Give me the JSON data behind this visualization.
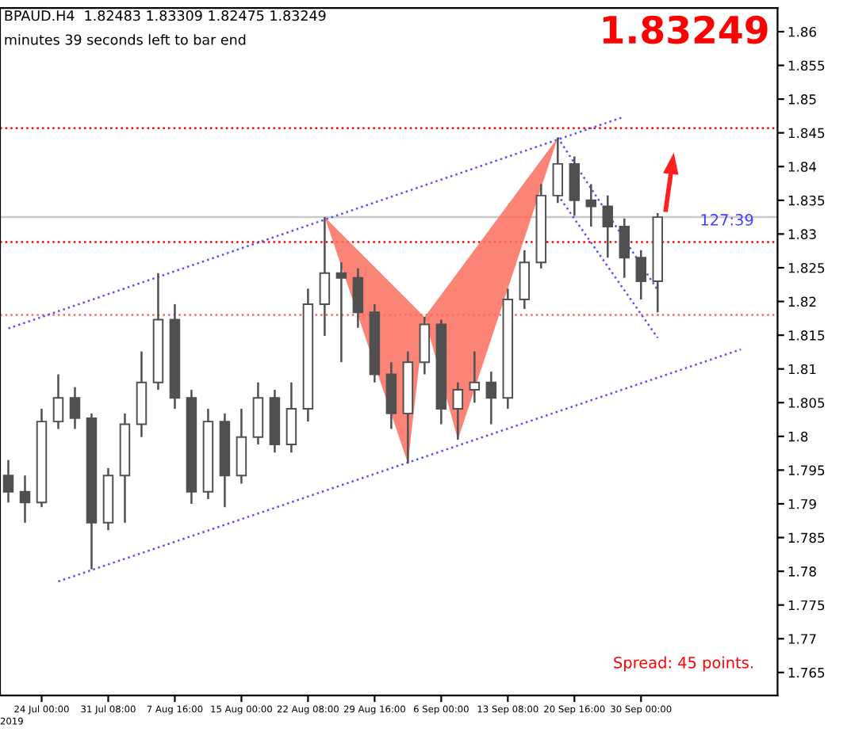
{
  "chart_data": {
    "type": "candlestick",
    "title": "BPAUD.H4  1.82483 1.83309 1.82475 1.83249",
    "subtitle": "minutes 39 seconds left to bar end",
    "annotations": [
      "1.83249",
      "Spread: 45 points.",
      "2019",
      "127:39"
    ],
    "categories": [
      null,
      null,
      "24 Jul 00:00",
      null,
      null,
      null,
      "31 Jul 08:00",
      null,
      null,
      null,
      "7 Aug 16:00",
      null,
      null,
      null,
      "15 Aug 00:00",
      null,
      null,
      null,
      "22 Aug 08:00",
      null,
      null,
      null,
      "29 Aug 16:00",
      null,
      null,
      null,
      "6 Sep 00:00",
      null,
      null,
      null,
      "13 Sep 08:00",
      null,
      null,
      null,
      "20 Sep 16:00",
      null,
      null,
      null,
      "30 Sep 00:00",
      null,
      null,
      null,
      null,
      null,
      null,
      null,
      null
    ],
    "ylim": [
      1.7616,
      1.8635
    ],
    "yticks": [
      1.765,
      1.77,
      1.775,
      1.78,
      1.785,
      1.79,
      1.795,
      1.8,
      1.805,
      1.81,
      1.815,
      1.82,
      1.825,
      1.83,
      1.835,
      1.84,
      1.845,
      1.85,
      1.855,
      1.86
    ],
    "line_style": "dotted",
    "grid": false,
    "ref_lines": [
      {
        "axis": "y",
        "value": 1.8457,
        "color": "#ff0000",
        "line_style": "dotted"
      },
      {
        "axis": "y",
        "value": 1.8288,
        "color": "#ff0000",
        "line_style": "dotted"
      },
      {
        "axis": "y",
        "value": 1.818,
        "color": "#ff6060",
        "line_style": "dotted"
      },
      {
        "axis": "y",
        "value": 1.8325,
        "color": "#c8c8c8",
        "line_style": "solid"
      }
    ],
    "series": [
      {
        "color": "#505050",
        "ohlc": [
          [
            1.7942,
            1.7965,
            1.7902,
            1.7918
          ],
          [
            1.7918,
            1.7942,
            1.7872,
            1.7902
          ],
          [
            1.7902,
            1.8041,
            1.7895,
            1.8022
          ],
          [
            1.8022,
            1.8092,
            1.8011,
            1.8057
          ],
          [
            1.8057,
            1.8073,
            1.8011,
            1.8027
          ],
          [
            1.8027,
            1.8034,
            1.7803,
            1.7872
          ],
          [
            1.7872,
            1.7953,
            1.7861,
            1.7942
          ],
          [
            1.7942,
            1.8034,
            1.7872,
            1.8018
          ],
          [
            1.8018,
            1.8126,
            1.7999,
            1.808
          ],
          [
            1.808,
            1.8242,
            1.8069,
            1.8173
          ],
          [
            1.8173,
            1.8196,
            1.8041,
            1.8057
          ],
          [
            1.8057,
            1.8069,
            1.79,
            1.7918
          ],
          [
            1.7918,
            1.8041,
            1.7907,
            1.8022
          ],
          [
            1.8022,
            1.8034,
            1.7895,
            1.7942
          ],
          [
            1.7942,
            1.8041,
            1.793,
            1.7999
          ],
          [
            1.7999,
            1.808,
            1.7988,
            1.8057
          ],
          [
            1.8057,
            1.8069,
            1.7976,
            1.7988
          ],
          [
            1.7988,
            1.808,
            1.7976,
            1.8041
          ],
          [
            1.8041,
            1.8219,
            1.8022,
            1.8196
          ],
          [
            1.8196,
            1.8325,
            1.8149,
            1.8242
          ],
          [
            1.8242,
            1.8258,
            1.811,
            1.8235
          ],
          [
            1.8235,
            1.8249,
            1.8161,
            1.8184
          ],
          [
            1.8184,
            1.8196,
            1.808,
            1.8092
          ],
          [
            1.8092,
            1.811,
            1.8011,
            1.8034
          ],
          [
            1.8034,
            1.8126,
            1.796,
            1.811
          ],
          [
            1.811,
            1.8177,
            1.8092,
            1.8166
          ],
          [
            1.8166,
            1.8173,
            1.8018,
            1.8041
          ],
          [
            1.8041,
            1.808,
            1.7995,
            1.8069
          ],
          [
            1.8069,
            1.8126,
            1.805,
            1.808
          ],
          [
            1.808,
            1.8096,
            1.8018,
            1.8057
          ],
          [
            1.8057,
            1.8219,
            1.8041,
            1.8203
          ],
          [
            1.8203,
            1.8276,
            1.8189,
            1.8258
          ],
          [
            1.8258,
            1.8374,
            1.8249,
            1.8357
          ],
          [
            1.8357,
            1.8443,
            1.8346,
            1.8404
          ],
          [
            1.8404,
            1.8415,
            1.8327,
            1.835
          ],
          [
            1.835,
            1.8374,
            1.8311,
            1.8341
          ],
          [
            1.8341,
            1.8357,
            1.8265,
            1.8311
          ],
          [
            1.8311,
            1.8323,
            1.8235,
            1.8265
          ],
          [
            1.8265,
            1.8276,
            1.8203,
            1.823
          ],
          [
            1.823,
            1.8331,
            1.8184,
            1.8325
          ],
          null,
          null,
          null,
          null,
          null,
          null,
          null
        ]
      },
      {
        "type": "area",
        "color": "#fa6f5e",
        "values": [
          null,
          null,
          null,
          null,
          null,
          null,
          null,
          null,
          null,
          null,
          null,
          null,
          null,
          null,
          null,
          null,
          null,
          null,
          null,
          1.8325,
          null,
          null,
          null,
          null,
          1.796,
          1.8177,
          null,
          1.7995,
          null,
          null,
          null,
          null,
          null,
          1.8443,
          null,
          null,
          null,
          null,
          null,
          null,
          null,
          null,
          null,
          null,
          null,
          null,
          null
        ]
      },
      {
        "type": "line",
        "color": "#5050ff",
        "values": [
          1.816,
          null,
          null,
          null,
          null,
          null,
          null,
          null,
          null,
          null,
          null,
          null,
          null,
          null,
          null,
          null,
          null,
          null,
          null,
          null,
          null,
          null,
          null,
          null,
          null,
          null,
          null,
          null,
          null,
          null,
          null,
          null,
          null,
          null,
          null,
          null,
          null,
          1.8474,
          null,
          null,
          null,
          null,
          null,
          null,
          null,
          null,
          null
        ]
      },
      {
        "type": "line",
        "color": "#5050ff",
        "values": [
          null,
          null,
          null,
          1.7785,
          null,
          null,
          null,
          null,
          null,
          null,
          null,
          null,
          null,
          null,
          null,
          null,
          null,
          null,
          null,
          null,
          null,
          null,
          null,
          null,
          null,
          null,
          null,
          null,
          null,
          null,
          null,
          null,
          null,
          null,
          null,
          null,
          null,
          null,
          null,
          null,
          null,
          null,
          null,
          null,
          1.8129,
          null,
          null
        ]
      },
      {
        "type": "line",
        "color": "#5050ff",
        "values": [
          null,
          null,
          null,
          null,
          null,
          null,
          null,
          null,
          null,
          null,
          null,
          null,
          null,
          null,
          null,
          null,
          null,
          null,
          null,
          null,
          null,
          null,
          null,
          null,
          null,
          null,
          null,
          null,
          null,
          null,
          null,
          null,
          null,
          1.8443,
          null,
          null,
          null,
          null,
          null,
          1.8217,
          null,
          null,
          null,
          null,
          null,
          null,
          null
        ]
      },
      {
        "type": "line",
        "color": "#5050ff",
        "values": [
          null,
          null,
          null,
          null,
          null,
          null,
          null,
          null,
          null,
          null,
          null,
          null,
          null,
          null,
          null,
          null,
          null,
          null,
          null,
          null,
          null,
          null,
          null,
          null,
          null,
          null,
          null,
          null,
          null,
          null,
          null,
          null,
          null,
          1.8358,
          null,
          null,
          null,
          null,
          null,
          1.8146,
          null,
          null,
          null,
          null,
          null,
          null,
          null
        ]
      }
    ]
  }
}
